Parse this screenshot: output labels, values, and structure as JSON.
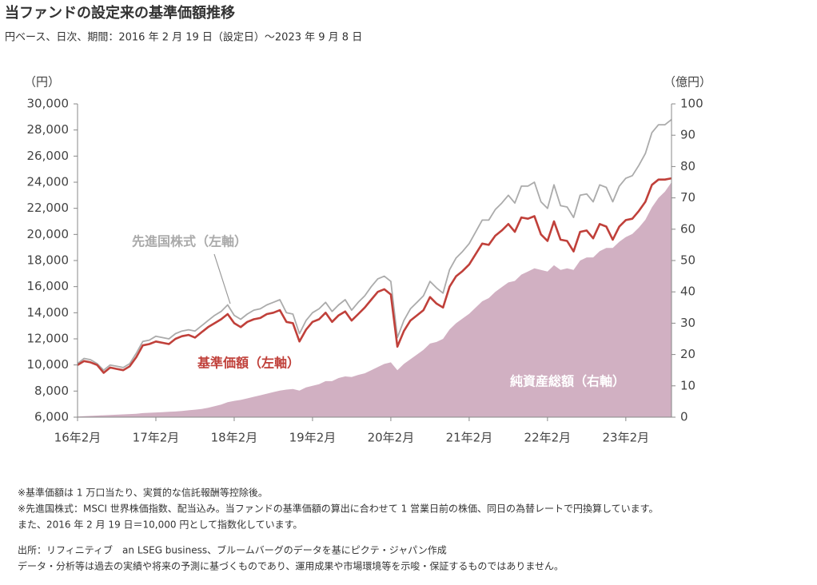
{
  "chart_data": {
    "type": "line",
    "title": "当ファンドの設定来の基準価額推移",
    "subtitle": "円ベース、日次、期間：2016 年 2 月 19 日（設定日）～2023 年 9 月 8 日",
    "y_unit": "（円）",
    "y2_unit": "（億円）",
    "x": [
      "2016-02",
      "2016-03",
      "2016-04",
      "2016-05",
      "2016-06",
      "2016-07",
      "2016-08",
      "2016-09",
      "2016-10",
      "2016-11",
      "2016-12",
      "2017-01",
      "2017-02",
      "2017-03",
      "2017-04",
      "2017-05",
      "2017-06",
      "2017-07",
      "2017-08",
      "2017-09",
      "2017-10",
      "2017-11",
      "2017-12",
      "2018-01",
      "2018-02",
      "2018-03",
      "2018-04",
      "2018-05",
      "2018-06",
      "2018-07",
      "2018-08",
      "2018-09",
      "2018-10",
      "2018-11",
      "2018-12",
      "2019-01",
      "2019-02",
      "2019-03",
      "2019-04",
      "2019-05",
      "2019-06",
      "2019-07",
      "2019-08",
      "2019-09",
      "2019-10",
      "2019-11",
      "2019-12",
      "2020-01",
      "2020-02",
      "2020-03",
      "2020-04",
      "2020-05",
      "2020-06",
      "2020-07",
      "2020-08",
      "2020-09",
      "2020-10",
      "2020-11",
      "2020-12",
      "2021-01",
      "2021-02",
      "2021-03",
      "2021-04",
      "2021-05",
      "2021-06",
      "2021-07",
      "2021-08",
      "2021-09",
      "2021-10",
      "2021-11",
      "2021-12",
      "2022-01",
      "2022-02",
      "2022-03",
      "2022-04",
      "2022-05",
      "2022-06",
      "2022-07",
      "2022-08",
      "2022-09",
      "2022-10",
      "2022-11",
      "2022-12",
      "2023-01",
      "2023-02",
      "2023-03",
      "2023-04",
      "2023-05",
      "2023-06",
      "2023-07",
      "2023-08",
      "2023-09"
    ],
    "xlim": [
      "2016-02",
      "2023-09"
    ],
    "xticks": [
      {
        "value": "2016-02",
        "label": "16年2月"
      },
      {
        "value": "2017-02",
        "label": "17年2月"
      },
      {
        "value": "2018-02",
        "label": "18年2月"
      },
      {
        "value": "2019-02",
        "label": "19年2月"
      },
      {
        "value": "2020-02",
        "label": "20年2月"
      },
      {
        "value": "2021-02",
        "label": "21年2月"
      },
      {
        "value": "2022-02",
        "label": "22年2月"
      },
      {
        "value": "2023-02",
        "label": "23年2月"
      }
    ],
    "ylim": [
      6000,
      30000
    ],
    "yticks": [
      {
        "value": 6000,
        "label": "6,000"
      },
      {
        "value": 8000,
        "label": "8,000"
      },
      {
        "value": 10000,
        "label": "10,000"
      },
      {
        "value": 12000,
        "label": "12,000"
      },
      {
        "value": 14000,
        "label": "14,000"
      },
      {
        "value": 16000,
        "label": "16,000"
      },
      {
        "value": 18000,
        "label": "18,000"
      },
      {
        "value": 20000,
        "label": "20,000"
      },
      {
        "value": 22000,
        "label": "22,000"
      },
      {
        "value": 24000,
        "label": "24,000"
      },
      {
        "value": 26000,
        "label": "26,000"
      },
      {
        "value": 28000,
        "label": "28,000"
      },
      {
        "value": 30000,
        "label": "30,000"
      }
    ],
    "y2lim": [
      0,
      100
    ],
    "y2ticks": [
      0,
      10,
      20,
      30,
      40,
      50,
      60,
      70,
      80,
      90,
      100
    ],
    "series": [
      {
        "name": "純資産総額（右軸）",
        "type": "area",
        "axis": "y2",
        "color": "#d1b0c2",
        "values": [
          0.2,
          0.3,
          0.4,
          0.5,
          0.6,
          0.7,
          0.8,
          0.9,
          1,
          1.1,
          1.3,
          1.4,
          1.5,
          1.6,
          1.7,
          1.8,
          2,
          2.2,
          2.4,
          2.6,
          3,
          3.5,
          4,
          4.8,
          5.2,
          5.5,
          6,
          6.5,
          7,
          7.5,
          8,
          8.5,
          8.8,
          9,
          8.5,
          9.5,
          10,
          10.5,
          11.5,
          11.5,
          12.5,
          13,
          12.8,
          13.5,
          14,
          15,
          16,
          17,
          17.5,
          15,
          17,
          18.5,
          20,
          21.5,
          23.5,
          24,
          25,
          28,
          30,
          31.5,
          33,
          35,
          37,
          38,
          40,
          41.5,
          43,
          43.5,
          45.5,
          46.5,
          47.5,
          47,
          46.5,
          48.5,
          47,
          47.5,
          47,
          50,
          51,
          51,
          53,
          54,
          54,
          56,
          57.5,
          58.5,
          60.5,
          63,
          67,
          70,
          72,
          75
        ]
      },
      {
        "name": "先進国株式（左軸）",
        "type": "line",
        "color": "#ababab",
        "values": [
          10100,
          10500,
          10400,
          10100,
          9600,
          10000,
          9900,
          9800,
          10100,
          10900,
          11800,
          11900,
          12200,
          12100,
          12000,
          12400,
          12600,
          12700,
          12600,
          13000,
          13400,
          13800,
          14100,
          14600,
          13800,
          13500,
          13900,
          14200,
          14300,
          14600,
          14800,
          15000,
          14000,
          13900,
          12400,
          13400,
          14000,
          14300,
          14800,
          14100,
          14600,
          15000,
          14200,
          14800,
          15300,
          16000,
          16600,
          16800,
          16400,
          12100,
          13400,
          14300,
          14800,
          15300,
          16400,
          15900,
          15500,
          17300,
          18200,
          18700,
          19300,
          20200,
          21100,
          21100,
          21900,
          22400,
          23000,
          22400,
          23700,
          23700,
          24000,
          22500,
          22000,
          23800,
          22200,
          22100,
          21300,
          23000,
          23100,
          22500,
          23800,
          23600,
          22500,
          23700,
          24300,
          24500,
          25300,
          26200,
          27800,
          28400,
          28400,
          28800
        ]
      },
      {
        "name": "基準価額（左軸）",
        "type": "line",
        "color": "#c0403a",
        "values": [
          10000,
          10300,
          10200,
          10000,
          9400,
          9800,
          9700,
          9600,
          9900,
          10600,
          11500,
          11600,
          11800,
          11700,
          11600,
          12000,
          12200,
          12300,
          12100,
          12500,
          12900,
          13200,
          13500,
          13900,
          13200,
          12900,
          13300,
          13500,
          13600,
          13900,
          14000,
          14200,
          13300,
          13200,
          11800,
          12700,
          13300,
          13500,
          14000,
          13300,
          13800,
          14100,
          13400,
          13900,
          14400,
          15000,
          15600,
          15800,
          15400,
          11400,
          12600,
          13400,
          13800,
          14200,
          15200,
          14700,
          14400,
          16000,
          16800,
          17200,
          17700,
          18500,
          19300,
          19200,
          19900,
          20300,
          20800,
          20200,
          21300,
          21200,
          21400,
          20000,
          19500,
          21000,
          19600,
          19500,
          18700,
          20200,
          20300,
          19700,
          20800,
          20600,
          19600,
          20600,
          21100,
          21200,
          21800,
          22500,
          23800,
          24200,
          24200,
          24300
        ]
      }
    ],
    "notes": [
      "※基準価額は 1 万口当たり、実質的な信託報酬等控除後。",
      "※先進国株式：MSCI 世界株価指数、配当込み。当ファンドの基準価額の算出に合わせて 1 営業日前の株価、同日の為替レートで円換算しています。",
      "また、2016 年 2 月 19 日＝10,000 円として指数化しています。",
      "出所：リフィニティブ　an LSEG business、ブルームバーグのデータを基にピクテ・ジャパン作成",
      "データ・分析等は過去の実績や将来の予測に基づくものであり、運用成果や市場環境等を示唆・保証するものではありません。"
    ]
  }
}
